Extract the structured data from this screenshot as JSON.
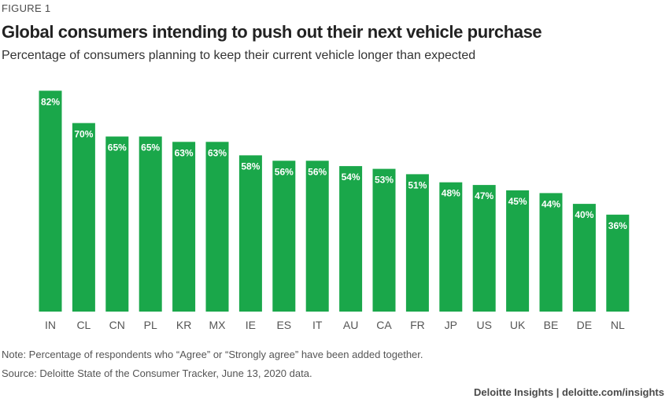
{
  "header": {
    "figure_label": "FIGURE 1",
    "title": "Global consumers intending to push out their next vehicle purchase",
    "subtitle": "Percentage of consumers planning to keep their current vehicle longer than expected"
  },
  "chart_data": {
    "type": "bar",
    "title": "Global consumers intending to push out their next vehicle purchase",
    "subtitle": "Percentage of consumers planning to keep their current vehicle longer than expected",
    "categories": [
      "IN",
      "CL",
      "CN",
      "PL",
      "KR",
      "MX",
      "IE",
      "ES",
      "IT",
      "AU",
      "CA",
      "FR",
      "JP",
      "US",
      "UK",
      "BE",
      "DE",
      "NL"
    ],
    "values": [
      82,
      70,
      65,
      65,
      63,
      63,
      58,
      56,
      56,
      54,
      53,
      51,
      48,
      47,
      45,
      44,
      40,
      36
    ],
    "value_labels": [
      "82%",
      "70%",
      "65%",
      "65%",
      "63%",
      "63%",
      "58%",
      "56%",
      "56%",
      "54%",
      "53%",
      "51%",
      "48%",
      "47%",
      "45%",
      "44%",
      "40%",
      "36%"
    ],
    "ylim": [
      0,
      85
    ],
    "grid": false,
    "bar_color": "#1aa74a",
    "label_color": "#ffffff"
  },
  "footer": {
    "note": "Note: Percentage of respondents who “Agree” or “Strongly agree” have been added together.",
    "source": "Source: Deloitte State of the Consumer Tracker, June 13, 2020 data.",
    "credit": "Deloitte Insights | deloitte.com/insights"
  }
}
